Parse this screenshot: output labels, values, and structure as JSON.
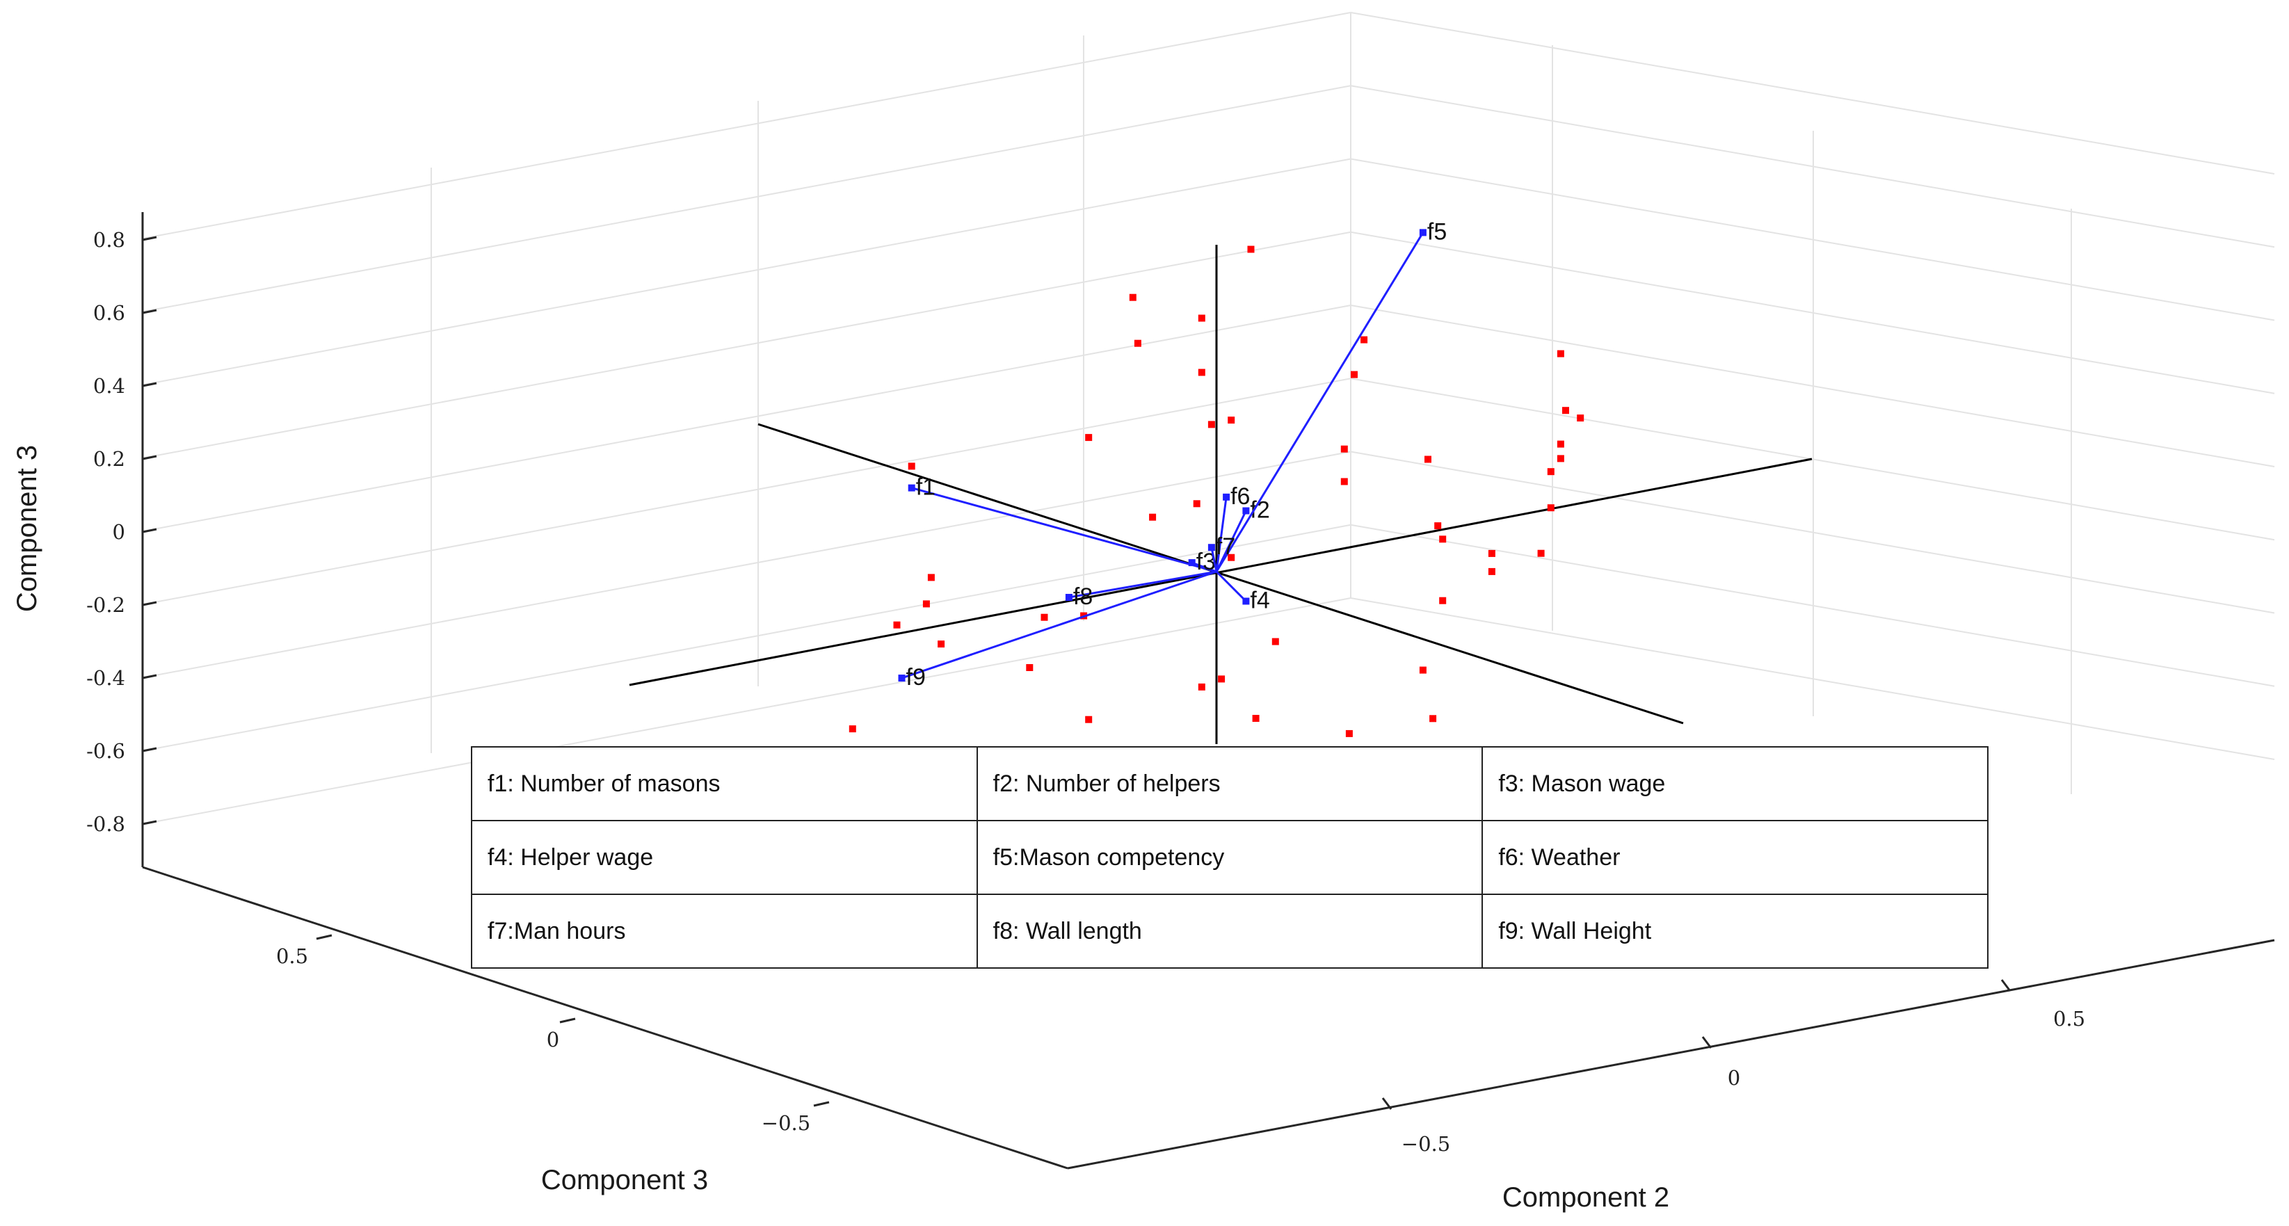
{
  "chart_data": {
    "type": "scatter",
    "subtype": "3d-biplot",
    "title": "",
    "zlabel": "Component 3",
    "ylabel_left": "Component 3",
    "xlabel_right": "Component 2",
    "z_ticks": [
      "0.8",
      "0.6",
      "0.4",
      "0.2",
      "0",
      "-0.2",
      "-0.4",
      "-0.6",
      "-0.8"
    ],
    "left_axis_ticks": [
      "0.5",
      "0",
      "−0.5"
    ],
    "right_axis_ticks": [
      "−0.5",
      "0",
      "0.5"
    ],
    "grid": true,
    "vector_color": "#1f1fff",
    "point_color": "#ff0000",
    "axis_line_color": "#000000",
    "vectors": [
      {
        "name": "f1",
        "x": -0.62,
        "y": 0.0,
        "z": 0.42
      },
      {
        "name": "f2",
        "x": 0.06,
        "y": 0.0,
        "z": 0.15
      },
      {
        "name": "f3",
        "x": -0.05,
        "y": 0.0,
        "z": 0.04
      },
      {
        "name": "f4",
        "x": 0.06,
        "y": 0.0,
        "z": -0.1
      },
      {
        "name": "f5",
        "x": 0.42,
        "y": 0.0,
        "z": 0.81
      },
      {
        "name": "f6",
        "x": 0.02,
        "y": 0.0,
        "z": 0.2
      },
      {
        "name": "f7",
        "x": -0.01,
        "y": 0.0,
        "z": 0.07
      },
      {
        "name": "f8",
        "x": -0.3,
        "y": 0.0,
        "z": 0.02
      },
      {
        "name": "f9",
        "x": -0.64,
        "y": 0.0,
        "z": -0.1
      }
    ],
    "scores": [
      {
        "x": -0.17,
        "z": 0.81
      },
      {
        "x": -0.16,
        "z": 0.68
      },
      {
        "x": 0.07,
        "z": 0.87
      },
      {
        "x": -0.03,
        "z": 0.71
      },
      {
        "x": -0.03,
        "z": 0.56
      },
      {
        "x": -0.01,
        "z": 0.41
      },
      {
        "x": 0.03,
        "z": 0.41
      },
      {
        "x": -0.26,
        "z": 0.45
      },
      {
        "x": -0.13,
        "z": 0.19
      },
      {
        "x": -0.04,
        "z": 0.2
      },
      {
        "x": -0.62,
        "z": 0.48
      },
      {
        "x": -0.58,
        "z": 0.16
      },
      {
        "x": -0.59,
        "z": 0.09
      },
      {
        "x": -0.65,
        "z": 0.05
      },
      {
        "x": -0.56,
        "z": -0.03
      },
      {
        "x": -0.74,
        "z": -0.21
      },
      {
        "x": -0.71,
        "z": -0.29
      },
      {
        "x": -0.78,
        "z": -0.29
      },
      {
        "x": -0.66,
        "z": -0.3
      },
      {
        "x": -0.64,
        "z": -0.32
      },
      {
        "x": -0.88,
        "z": -0.34
      },
      {
        "x": -0.79,
        "z": -0.45
      },
      {
        "x": -0.81,
        "z": -0.45
      },
      {
        "x": -0.64,
        "z": -0.5
      },
      {
        "x": -0.38,
        "z": -0.15
      },
      {
        "x": -0.35,
        "z": -0.02
      },
      {
        "x": -0.27,
        "z": -0.04
      },
      {
        "x": -0.26,
        "z": -0.33
      },
      {
        "x": -0.35,
        "z": -0.42
      },
      {
        "x": -0.18,
        "z": -0.46
      },
      {
        "x": -0.03,
        "z": -0.31
      },
      {
        "x": 0.01,
        "z": -0.3
      },
      {
        "x": 0.08,
        "z": -0.43
      },
      {
        "x": 0.12,
        "z": -0.23
      },
      {
        "x": 0.03,
        "z": 0.03
      },
      {
        "x": 0.3,
        "z": 0.55
      },
      {
        "x": 0.28,
        "z": 0.46
      },
      {
        "x": 0.26,
        "z": 0.26
      },
      {
        "x": 0.26,
        "z": 0.17
      },
      {
        "x": 0.43,
        "z": 0.18
      },
      {
        "x": 0.45,
        "z": -0.01
      },
      {
        "x": 0.46,
        "z": -0.05
      },
      {
        "x": 0.46,
        "z": -0.22
      },
      {
        "x": 0.56,
        "z": -0.12
      },
      {
        "x": 0.56,
        "z": -0.17
      },
      {
        "x": 0.66,
        "z": -0.15
      },
      {
        "x": 0.68,
        "z": -0.03
      },
      {
        "x": 0.68,
        "z": 0.07
      },
      {
        "x": 0.7,
        "z": 0.1
      },
      {
        "x": 0.7,
        "z": 0.14
      },
      {
        "x": 0.71,
        "z": 0.23
      },
      {
        "x": 0.7,
        "z": 0.39
      },
      {
        "x": 0.74,
        "z": 0.2
      },
      {
        "x": 0.42,
        "z": -0.4
      },
      {
        "x": 0.27,
        "z": -0.53
      },
      {
        "x": 0.44,
        "z": -0.54
      }
    ]
  },
  "legend": {
    "rows": [
      [
        "f1: Number of masons",
        "f2: Number of helpers",
        "f3: Mason wage"
      ],
      [
        "f4: Helper wage",
        "f5:Mason competency",
        "f6: Weather"
      ],
      [
        "f7:Man hours",
        "f8: Wall length",
        "f9: Wall Height"
      ]
    ]
  }
}
